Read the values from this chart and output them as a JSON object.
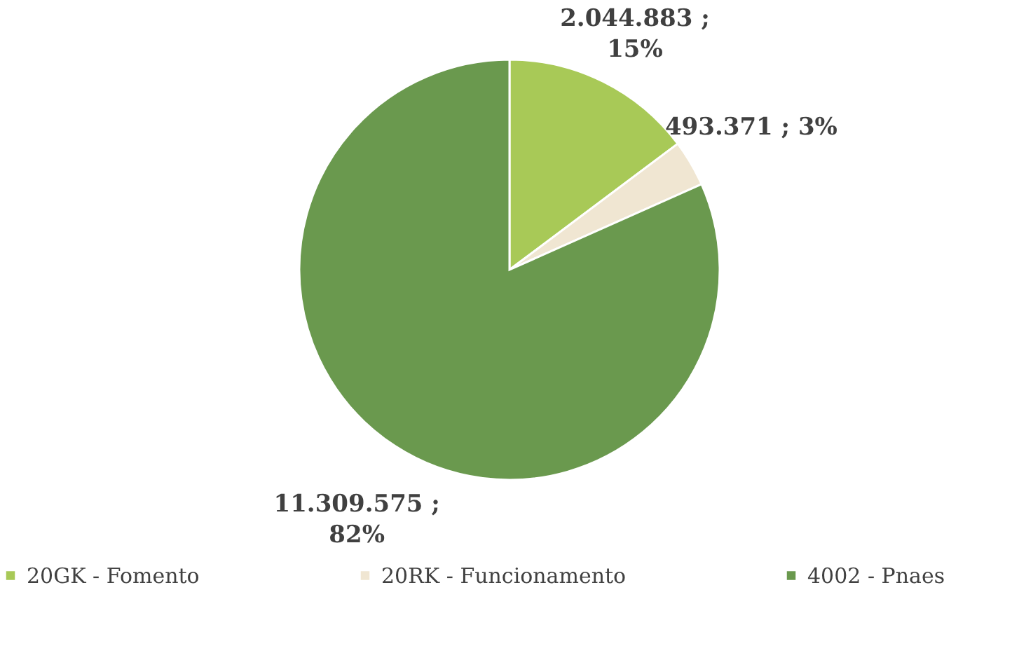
{
  "chart_data": {
    "type": "pie",
    "categories": [
      "20GK - Fomento",
      "20RK - Funcionamento",
      "4002 - Pnaes"
    ],
    "values": [
      2044883,
      493371,
      11309575
    ],
    "colors": [
      "#a8c957",
      "#f0e6d2",
      "#6a994e"
    ],
    "value_labels": [
      "2.044.883 ;\n15%",
      "493.371 ; 3%",
      "11.309.575 ;\n82%"
    ],
    "legend": "bottom"
  }
}
